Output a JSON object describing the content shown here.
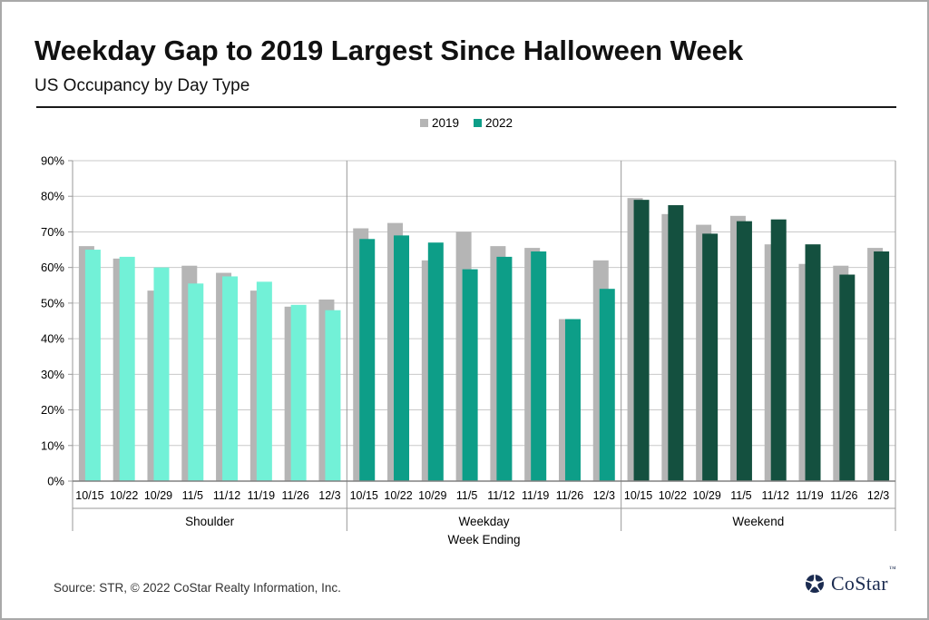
{
  "header": {
    "title": "Weekday Gap to 2019 Largest Since Halloween Week",
    "subtitle": "US Occupancy by Day Type"
  },
  "legend": {
    "items": [
      {
        "label": "2019",
        "color": "#b5b5b5"
      },
      {
        "label": "2022",
        "color": "#0d9e88"
      }
    ]
  },
  "chart_data": {
    "type": "bar",
    "title": "Weekday Gap to 2019 Largest Since Halloween Week",
    "subtitle": "US Occupancy by Day Type",
    "xlabel": "Week Ending",
    "ylabel": "",
    "ylim": [
      0,
      90
    ],
    "ytick_step": 10,
    "ytick_suffix": "%",
    "grid": "horizontal",
    "legend_position": "top",
    "series_names": [
      "2019",
      "2022"
    ],
    "series_2019_color": "#b5b5b5",
    "categories": [
      "10/15",
      "10/22",
      "10/29",
      "11/5",
      "11/12",
      "11/19",
      "11/26",
      "12/3"
    ],
    "groups": [
      {
        "label": "Shoulder",
        "bar_color_2022": "#72f1d7",
        "series": [
          {
            "name": "2019",
            "values": [
              66,
              62.5,
              53.5,
              60.5,
              58.5,
              53.5,
              49,
              51
            ]
          },
          {
            "name": "2022",
            "values": [
              65,
              63,
              60,
              55.5,
              57.5,
              56,
              49.5,
              48
            ]
          }
        ]
      },
      {
        "label": "Weekday",
        "bar_color_2022": "#0d9e88",
        "series": [
          {
            "name": "2019",
            "values": [
              71,
              72.5,
              62,
              70,
              66,
              65.5,
              45.5,
              62
            ]
          },
          {
            "name": "2022",
            "values": [
              68,
              69,
              67,
              59.5,
              63,
              64.5,
              45.5,
              54
            ]
          }
        ]
      },
      {
        "label": "Weekend",
        "bar_color_2022": "#14503f",
        "series": [
          {
            "name": "2019",
            "values": [
              79.5,
              75,
              72,
              74.5,
              66.5,
              61,
              60.5,
              65.5
            ]
          },
          {
            "name": "2022",
            "values": [
              79,
              77.5,
              69.5,
              73,
              73.5,
              66.5,
              58,
              64.5
            ]
          }
        ]
      }
    ]
  },
  "footer": {
    "source": "Source: STR, © 2022  CoStar Realty Information, Inc.",
    "logo": {
      "text": "CoStar",
      "tm": "™"
    }
  },
  "colors": {
    "grid": "#c9c9c9",
    "axis": "#999999",
    "baseline": "#808080",
    "navy": "#1b2b50"
  }
}
